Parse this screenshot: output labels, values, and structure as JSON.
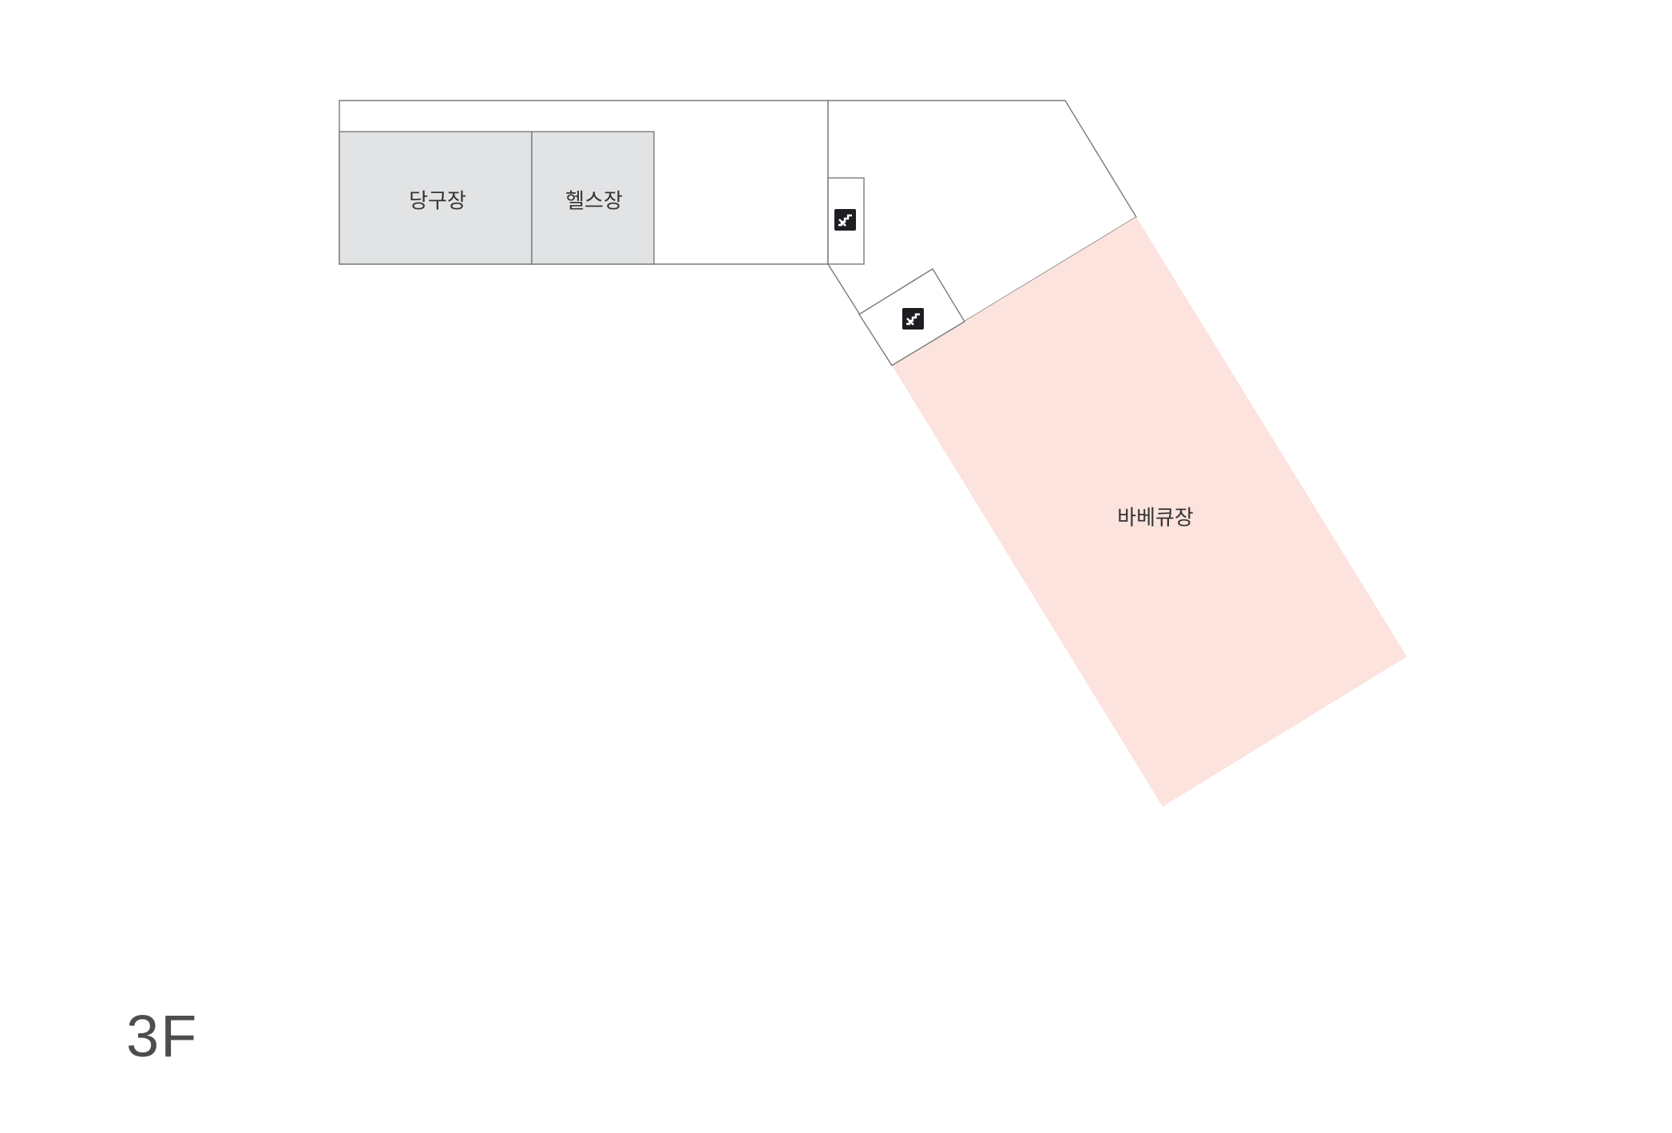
{
  "floor": {
    "label": "3F"
  },
  "rooms": {
    "billiards": {
      "label": "당구장"
    },
    "fitness": {
      "label": "헬스장"
    },
    "bbq": {
      "label": "바베큐장"
    }
  },
  "icons": {
    "stairs_1": "stairs-icon",
    "stairs_2": "stairs-icon"
  },
  "colors": {
    "gray_room": "#e2e3e5",
    "bbq_room": "#fde3dd",
    "outline": "#7a7a7a",
    "icon": "#1e1e22"
  }
}
